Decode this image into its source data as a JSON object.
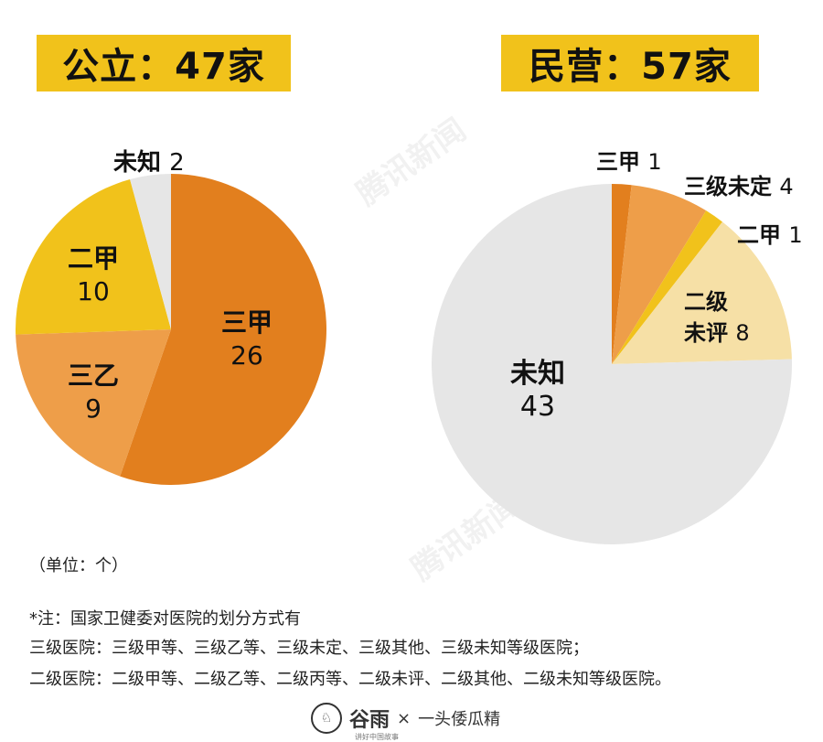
{
  "headers": {
    "public": "公立：47家",
    "private": "民营：57家"
  },
  "chart_data": [
    {
      "type": "pie",
      "title": "公立：47家",
      "slices": [
        {
          "label": "三甲",
          "value": 26,
          "color": "#e27f1e",
          "text_color": "#111111"
        },
        {
          "label": "三乙",
          "value": 9,
          "color": "#ee9e49",
          "text_color": "#111111"
        },
        {
          "label": "二甲",
          "value": 10,
          "color": "#f1c21b",
          "text_color": "#111111"
        },
        {
          "label": "未知",
          "value": 2,
          "color": "#e6e6e6",
          "text_color": "#111111"
        }
      ]
    },
    {
      "type": "pie",
      "title": "民营：57家",
      "slices": [
        {
          "label": "三甲",
          "value": 1,
          "color": "#e27f1e",
          "text_color": "#111111"
        },
        {
          "label": "三级未定",
          "value": 4,
          "color": "#ee9e49",
          "text_color": "#111111"
        },
        {
          "label": "二甲",
          "value": 1,
          "color": "#f1c21b",
          "text_color": "#111111"
        },
        {
          "label": "二级未评",
          "value": 8,
          "color": "#f6e0a6",
          "text_color": "#111111"
        },
        {
          "label": "未知",
          "value": 43,
          "color": "#e6e6e6",
          "text_color": "#111111"
        }
      ]
    }
  ],
  "unit": "（单位：个）",
  "notes": [
    "*注：国家卫健委对医院的划分方式有",
    "三级医院：三级甲等、三级乙等、三级未定、三级其他、三级未知等级医院；",
    "二级医院：二级甲等、二级乙等、二级丙等、二级未评、二级其他、二级未知等级医院。"
  ],
  "footer": {
    "brand": "谷雨",
    "brand_sub": "讲好中国故事",
    "separator": "×",
    "partner": "一头倭瓜精"
  },
  "watermark": "腾讯新闻"
}
